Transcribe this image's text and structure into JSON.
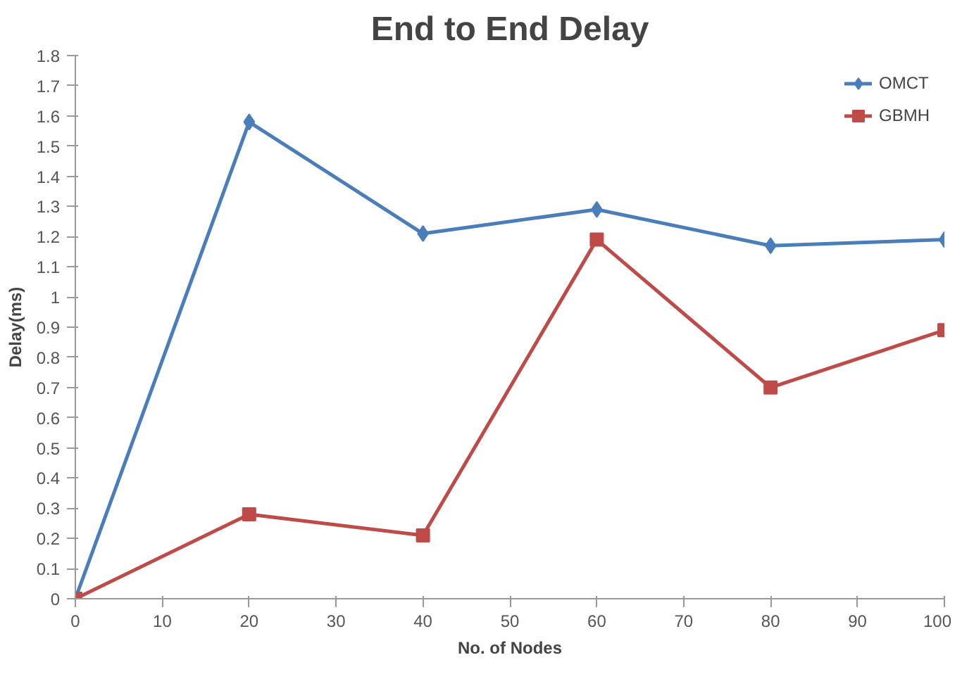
{
  "chart_data": {
    "type": "line",
    "title": "End to End Delay",
    "xlabel": "No. of Nodes",
    "ylabel": "Delay(ms)",
    "x": [
      0,
      20,
      40,
      60,
      80,
      100
    ],
    "series": [
      {
        "name": "OMCT",
        "color": "#4a7ebb",
        "marker": "diamond",
        "values": [
          0,
          1.58,
          1.21,
          1.29,
          1.17,
          1.19
        ]
      },
      {
        "name": "GBMH",
        "color": "#be4b48",
        "marker": "square",
        "values": [
          0,
          0.28,
          0.21,
          1.19,
          0.7,
          0.89
        ]
      }
    ],
    "xlim": [
      0,
      100
    ],
    "xticks": [
      0,
      10,
      20,
      30,
      40,
      50,
      60,
      70,
      80,
      90,
      100
    ],
    "ylim": [
      0,
      1.8
    ],
    "yticks": [
      0,
      0.1,
      0.2,
      0.3,
      0.4,
      0.5,
      0.6,
      0.7,
      0.8,
      0.9,
      1,
      1.1,
      1.2,
      1.3,
      1.4,
      1.5,
      1.6,
      1.7,
      1.8
    ],
    "grid": false,
    "legend": "top right",
    "line_style": "solid"
  }
}
